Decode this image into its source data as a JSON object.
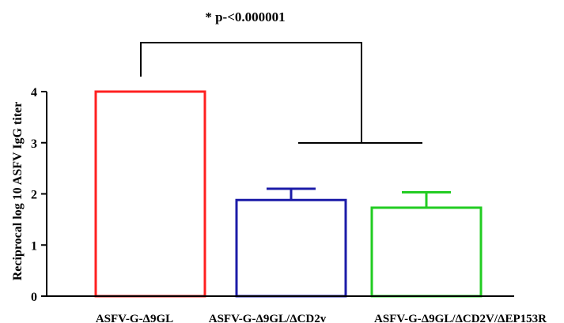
{
  "chart_data": {
    "type": "bar",
    "title": "",
    "xlabel": "",
    "ylabel": "Reciprocal log 10 ASFV IgG titer",
    "ylim": [
      0,
      4
    ],
    "yticks": [
      "0",
      "1",
      "2",
      "3",
      "4"
    ],
    "categories": [
      "ASFV-G-Δ9GL",
      "ASFV-G-Δ9GL/ΔCD2v",
      "ASFV-G-Δ9GL/ΔCD2V/ΔEP153R"
    ],
    "values": [
      4.0,
      1.88,
      1.73
    ],
    "error_upper": [
      0.0,
      0.22,
      0.3
    ],
    "bar_colors": [
      "#ff2020",
      "#1c1ca8",
      "#22cc22"
    ],
    "filled": false,
    "grid": false,
    "annotation": "* p-<0.000001"
  }
}
